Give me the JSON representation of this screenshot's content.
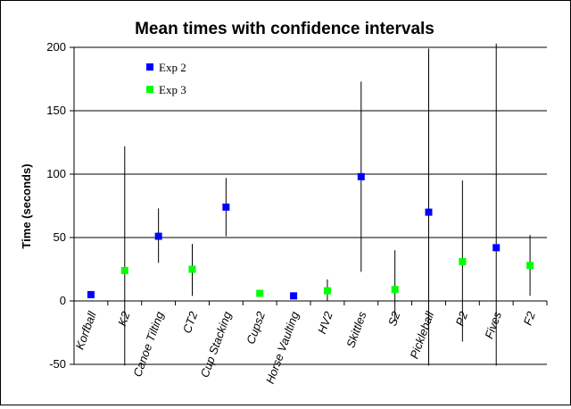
{
  "chart_data": {
    "type": "scatter",
    "title": "Mean times with confidence intervals",
    "xlabel": "",
    "ylabel": "Time (seconds)",
    "ylim": [
      -50,
      200
    ],
    "yticks": [
      -50,
      0,
      50,
      100,
      150,
      200
    ],
    "grid": true,
    "legend_position": "top-left",
    "categories": [
      "Korfball",
      "K2",
      "Canoe Tilting",
      "CT2",
      "Cup Stacking",
      "Cups2",
      "Horse Vaulting",
      "HV2",
      "Skittles",
      "S2",
      "Pickleball",
      "P2",
      "Fives",
      "F2"
    ],
    "series": [
      {
        "name": "Exp 2",
        "color": "#0000ff",
        "points": [
          {
            "category": "Korfball",
            "mean": 5,
            "low": 5,
            "high": 5
          },
          {
            "category": "Canoe Tilting",
            "mean": 51,
            "low": 30,
            "high": 73
          },
          {
            "category": "Cup Stacking",
            "mean": 74,
            "low": 51,
            "high": 97
          },
          {
            "category": "Horse Vaulting",
            "mean": 4,
            "low": 4,
            "high": 4
          },
          {
            "category": "Skittles",
            "mean": 98,
            "low": 23,
            "high": 173
          },
          {
            "category": "Pickleball",
            "mean": 70,
            "low": -51,
            "high": 199
          },
          {
            "category": "Fives",
            "mean": 42,
            "low": -51,
            "high": 203
          }
        ]
      },
      {
        "name": "Exp 3",
        "color": "#00ff00",
        "points": [
          {
            "category": "K2",
            "mean": 24,
            "low": -51,
            "high": 122
          },
          {
            "category": "CT2",
            "mean": 25,
            "low": 4,
            "high": 45
          },
          {
            "category": "Cups2",
            "mean": 6,
            "low": 6,
            "high": 6
          },
          {
            "category": "HV2",
            "mean": 8,
            "low": 0,
            "high": 17
          },
          {
            "category": "S2",
            "mean": 9,
            "low": -16,
            "high": 40
          },
          {
            "category": "P2",
            "mean": 31,
            "low": -32,
            "high": 95
          },
          {
            "category": "F2",
            "mean": 28,
            "low": 4,
            "high": 52
          }
        ]
      }
    ]
  }
}
